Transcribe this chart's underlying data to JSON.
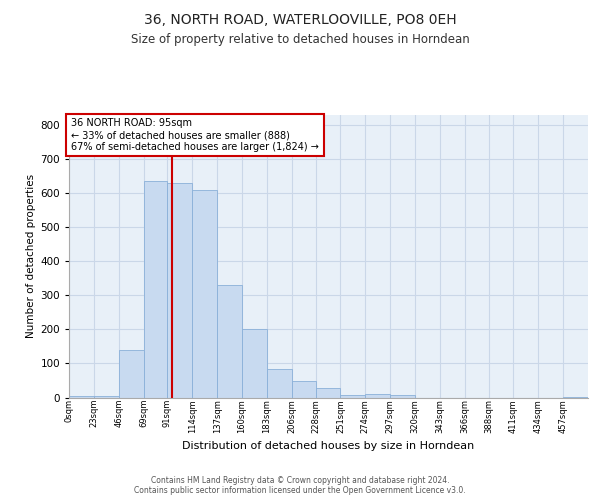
{
  "title": "36, NORTH ROAD, WATERLOOVILLE, PO8 0EH",
  "subtitle": "Size of property relative to detached houses in Horndean",
  "xlabel": "Distribution of detached houses by size in Horndean",
  "ylabel": "Number of detached properties",
  "bin_labels": [
    "0sqm",
    "23sqm",
    "46sqm",
    "69sqm",
    "91sqm",
    "114sqm",
    "137sqm",
    "160sqm",
    "183sqm",
    "206sqm",
    "228sqm",
    "251sqm",
    "274sqm",
    "297sqm",
    "320sqm",
    "343sqm",
    "366sqm",
    "388sqm",
    "411sqm",
    "434sqm",
    "457sqm"
  ],
  "bin_edges": [
    0,
    23,
    46,
    69,
    91,
    114,
    137,
    160,
    183,
    206,
    228,
    251,
    274,
    297,
    320,
    343,
    366,
    388,
    411,
    434,
    457,
    480
  ],
  "bar_values": [
    4,
    5,
    140,
    635,
    630,
    610,
    330,
    200,
    85,
    48,
    28,
    8,
    10,
    8,
    0,
    0,
    0,
    0,
    0,
    0,
    2
  ],
  "bar_color": "#c8daf0",
  "bar_edge_color": "#8ab0d8",
  "grid_color": "#cad7e8",
  "background_color": "#e8f0f8",
  "property_line_x": 95,
  "property_line_color": "#cc0000",
  "annotation_text": "36 NORTH ROAD: 95sqm\n← 33% of detached houses are smaller (888)\n67% of semi-detached houses are larger (1,824) →",
  "annotation_box_color": "#ffffff",
  "annotation_box_edge": "#cc0000",
  "ylim": [
    0,
    830
  ],
  "yticks": [
    0,
    100,
    200,
    300,
    400,
    500,
    600,
    700,
    800
  ],
  "footer_line1": "Contains HM Land Registry data © Crown copyright and database right 2024.",
  "footer_line2": "Contains public sector information licensed under the Open Government Licence v3.0."
}
